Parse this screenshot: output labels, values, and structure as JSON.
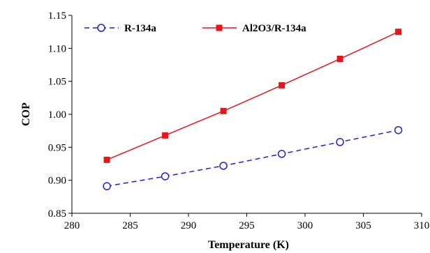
{
  "chart_data": {
    "type": "line",
    "title": "",
    "xlabel": "Temperature (K)",
    "ylabel": "COP",
    "xlim": [
      280,
      310
    ],
    "ylim": [
      0.85,
      1.15
    ],
    "x_ticks": [
      "280",
      "285",
      "290",
      "295",
      "300",
      "305",
      "310"
    ],
    "y_ticks": [
      "0.85",
      "0.90",
      "0.95",
      "1.00",
      "1.05",
      "1.10",
      "1.15"
    ],
    "grid": false,
    "legend_position": "top",
    "series": [
      {
        "name": "R-134a",
        "color": "#1f1fd6",
        "line_style": "dashed",
        "marker": "open-circle",
        "x": [
          283,
          288,
          293,
          298,
          303,
          308
        ],
        "values": [
          0.891,
          0.906,
          0.922,
          0.94,
          0.958,
          0.976
        ]
      },
      {
        "name": "Al2O3/R-134a",
        "color": "#e8141b",
        "line_style": "solid",
        "marker": "filled-square",
        "x": [
          283,
          288,
          293,
          298,
          303,
          308
        ],
        "values": [
          0.931,
          0.968,
          1.005,
          1.044,
          1.084,
          1.125
        ]
      }
    ]
  }
}
